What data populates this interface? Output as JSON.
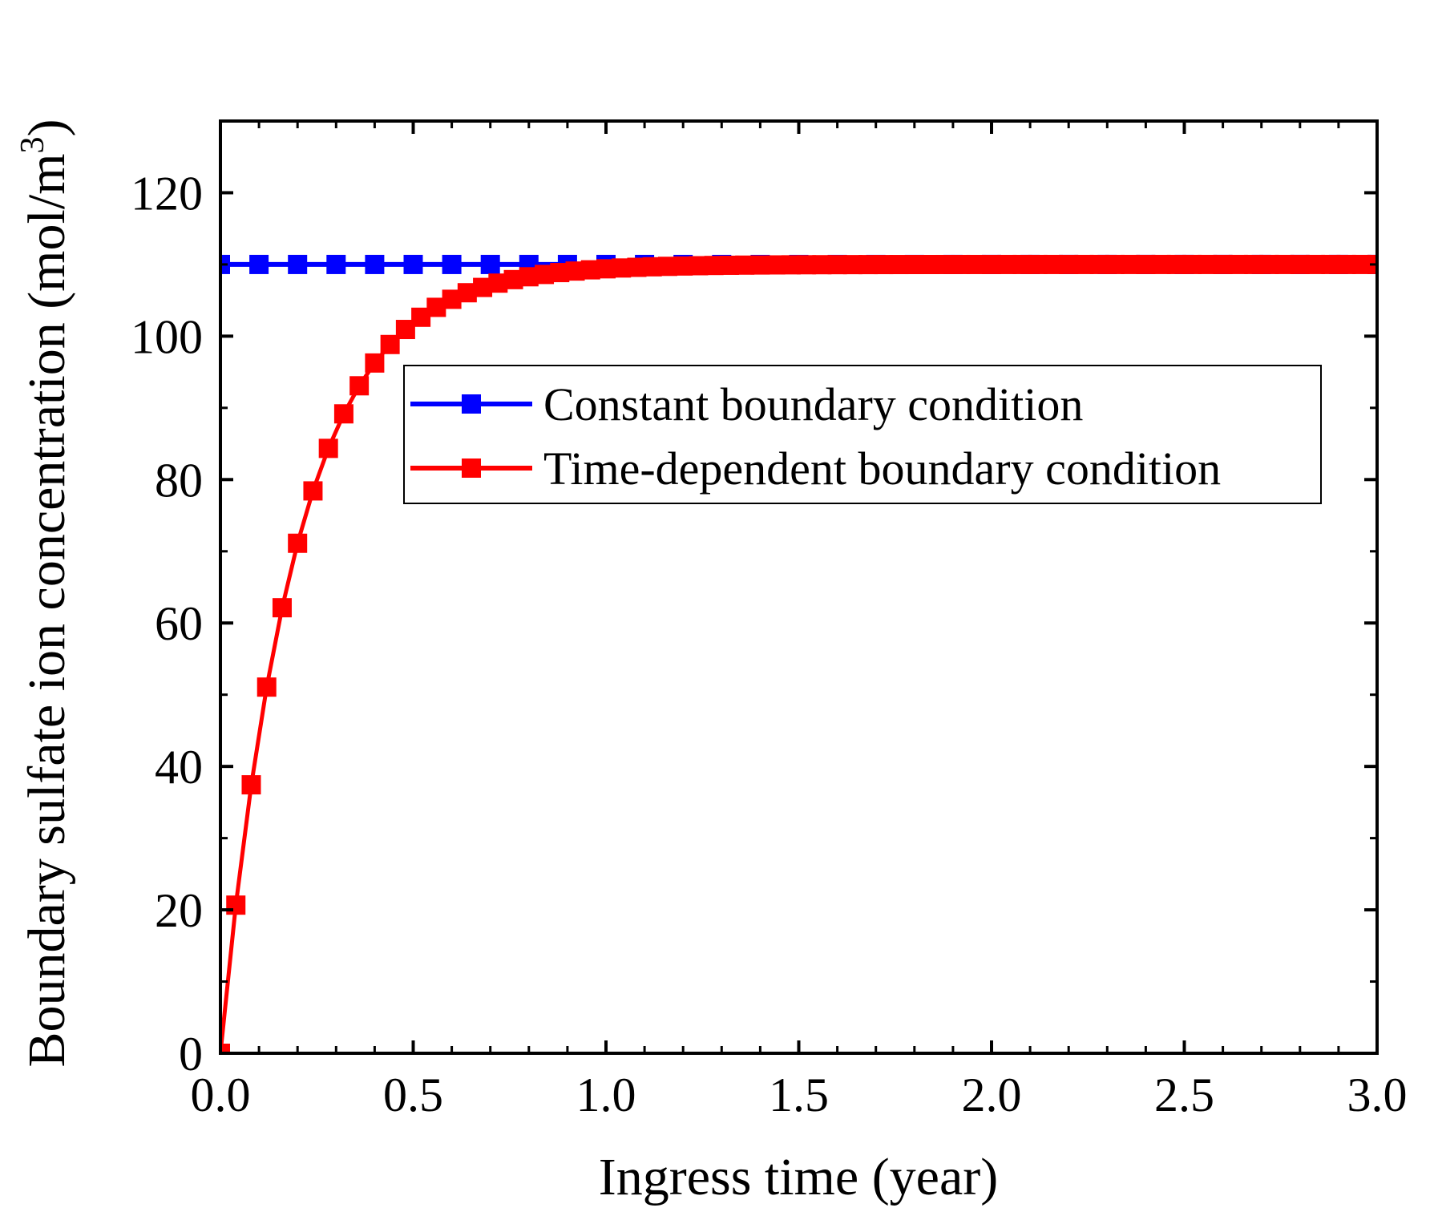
{
  "chart_data": {
    "type": "line",
    "title": "",
    "xlabel": "Ingress time  (year)",
    "ylabel": "Boundary sulfate ion concentration (mol/m",
    "ylabel_superscript": "3",
    "ylabel_close": ")",
    "xlim": [
      0,
      3
    ],
    "ylim": [
      0,
      130
    ],
    "x_ticks": [
      0.0,
      0.5,
      1.0,
      1.5,
      2.0,
      2.5,
      3.0
    ],
    "x_tick_labels": [
      "0.0",
      "0.5",
      "1.0",
      "1.5",
      "2.0",
      "2.5",
      "3.0"
    ],
    "y_ticks": [
      0,
      20,
      40,
      60,
      80,
      100,
      120
    ],
    "y_tick_labels": [
      "0",
      "20",
      "40",
      "60",
      "80",
      "100",
      "120"
    ],
    "grid": false,
    "legend_position": "center-right",
    "series": [
      {
        "name": "Constant boundary condition",
        "color": "#0000ff",
        "marker": "square",
        "x": [
          0.0,
          0.1,
          0.2,
          0.3,
          0.4,
          0.5,
          0.6,
          0.7,
          0.8,
          0.9,
          1.0,
          1.1,
          1.2,
          1.3,
          1.4,
          1.5,
          1.6,
          1.7,
          1.8,
          1.9,
          2.0,
          2.1,
          2.2,
          2.3,
          2.4,
          2.5,
          2.6,
          2.7,
          2.8,
          2.9,
          3.0
        ],
        "values": [
          110,
          110,
          110,
          110,
          110,
          110,
          110,
          110,
          110,
          110,
          110,
          110,
          110,
          110,
          110,
          110,
          110,
          110,
          110,
          110,
          110,
          110,
          110,
          110,
          110,
          110,
          110,
          110,
          110,
          110,
          110
        ]
      },
      {
        "name": "Time-dependent boundary condition",
        "color": "#ff0000",
        "marker": "square",
        "formula": "110*(1-exp(-5.2*t))",
        "x_step": 0.04,
        "x_max": 3.0
      }
    ]
  }
}
